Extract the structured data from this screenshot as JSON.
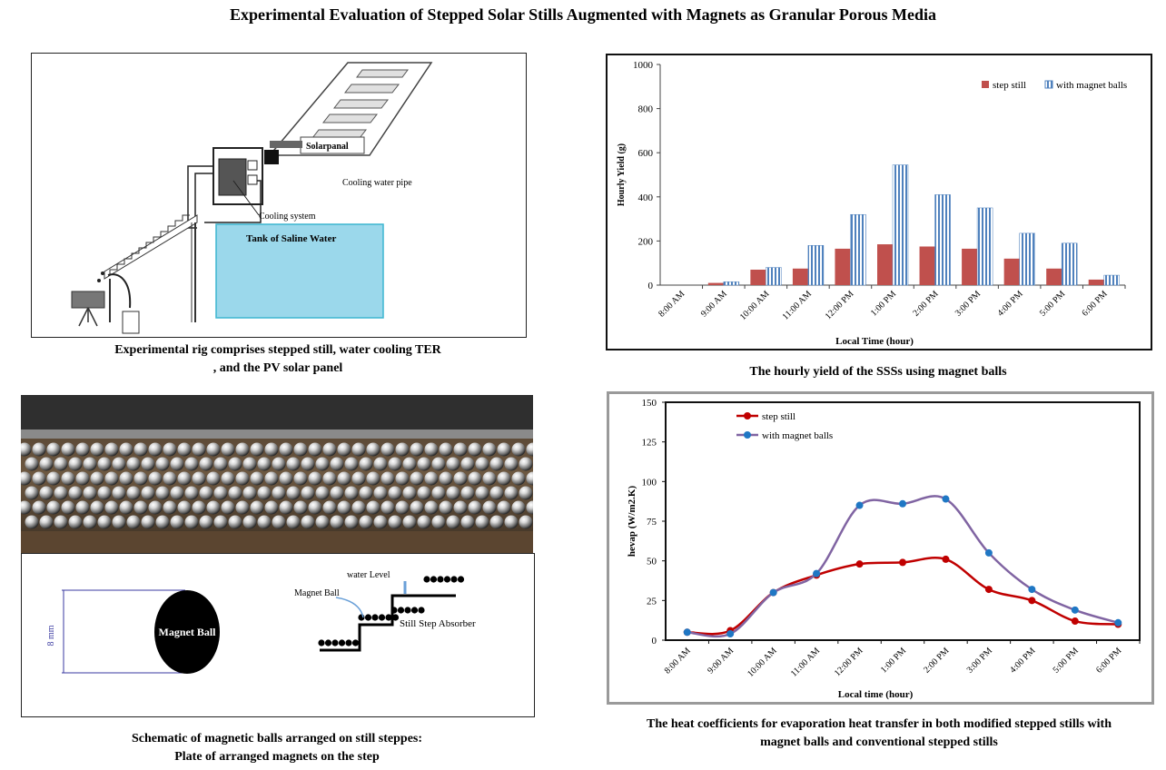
{
  "title": "Experimental Evaluation of Stepped Solar Stills Augmented with Magnets as Granular Porous Media",
  "panels": {
    "rig": {
      "labels": {
        "solar_panel": "Solarpanal",
        "cooling_pipe": "Cooling water pipe",
        "cooling_system": "Cooling system",
        "tank": "Tank of Saline Water"
      },
      "caption_line1": "Experimental rig comprises stepped still, water cooling TER",
      "caption_line2": ", and the PV solar panel"
    },
    "schematic": {
      "labels": {
        "dimension": "8 mm",
        "ball": "Magnet Ball",
        "water_level": "water Level",
        "magnet_ball": "Magnet Ball",
        "absorber": "Still Step Absorber"
      },
      "caption_line1": "Schematic of magnetic balls arranged on still steppes:",
      "caption_line2": "Plate of arranged magnets on the step"
    },
    "yield_chart": {
      "caption": "The hourly yield of the SSSs using magnet balls"
    },
    "heat_chart": {
      "caption_line1": "The heat coefficients for evaporation heat transfer in both modified stepped stills with",
      "caption_line2": "magnet balls and conventional stepped stills"
    }
  },
  "chart_data": [
    {
      "type": "bar",
      "categories": [
        "8:00 AM",
        "9:00 AM",
        "10:00 AM",
        "11:00 AM",
        "12:00 PM",
        "1:00 PM",
        "2:00 PM",
        "3:00 PM",
        "4:00 PM",
        "5:00 PM",
        "6:00 PM"
      ],
      "series": [
        {
          "name": "step still",
          "color": "#c0504d",
          "values": [
            0,
            10,
            70,
            75,
            165,
            185,
            175,
            165,
            120,
            75,
            25
          ]
        },
        {
          "name": "with magnet balls",
          "color": "#4f81bd",
          "values": [
            0,
            15,
            80,
            180,
            320,
            545,
            410,
            350,
            235,
            190,
            45
          ]
        }
      ],
      "xlabel": "Local Time (hour)",
      "ylabel": "Hourly Yield (g)",
      "ylim": [
        0,
        1000
      ],
      "yticks": [
        0,
        200,
        400,
        600,
        800,
        1000
      ],
      "legend": "top-right"
    },
    {
      "type": "line",
      "categories": [
        "8:00 AM",
        "9:00 AM",
        "10:00 AM",
        "11:00 AM",
        "12:00 PM",
        "1:00 PM",
        "2:00 PM",
        "3:00 PM",
        "4:00 PM",
        "5:00 PM",
        "6:00 PM"
      ],
      "series": [
        {
          "name": "step still",
          "color": "#c00000",
          "values": [
            5,
            6,
            30,
            41,
            48,
            49,
            51,
            32,
            25,
            12,
            10
          ]
        },
        {
          "name": "with magnet balls",
          "color": "#1f77c4",
          "line_color": "#8064a2",
          "values": [
            5,
            4,
            30,
            42,
            85,
            86,
            89,
            55,
            32,
            19,
            11
          ]
        }
      ],
      "xlabel": "Local time (hour)",
      "ylabel": "hevap (W/m2.K)",
      "ylim": [
        0,
        150
      ],
      "yticks": [
        0,
        25,
        50,
        75,
        100,
        125,
        150
      ],
      "legend": "top-left"
    }
  ]
}
